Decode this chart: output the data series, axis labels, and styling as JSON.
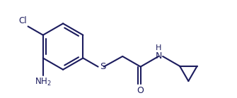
{
  "line_color": "#1c1c5e",
  "bg_color": "#ffffff",
  "line_width": 1.5,
  "figsize": [
    3.35,
    1.39
  ],
  "dpi": 100,
  "xlim": [
    0.0,
    10.0
  ],
  "ylim": [
    0.0,
    4.2
  ]
}
